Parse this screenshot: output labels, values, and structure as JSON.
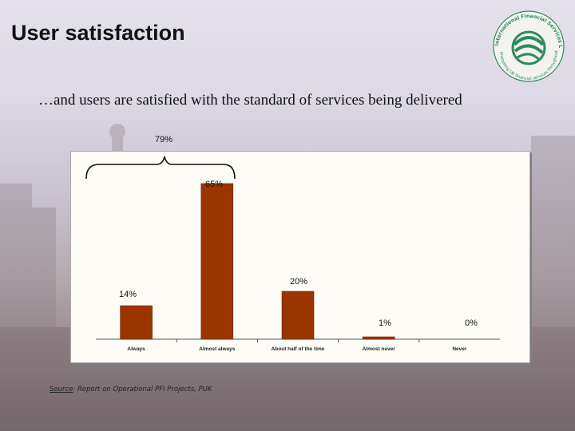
{
  "slide": {
    "title": "User satisfaction",
    "subtitle": "…and users are satisfied with the standard of services being delivered"
  },
  "logo": {
    "text_top": "International Financial Services London",
    "text_bottom": "Promoting UK financial services throughout the world",
    "icon": "globe-swirl-icon"
  },
  "bracket": {
    "label": "79%",
    "icon": "curly-brace-icon"
  },
  "source": {
    "label": "Source",
    "text": ": Report on Operational PFI Projects, PUK"
  },
  "colors": {
    "bar": "#9a3500",
    "bar_edge": "#6e2500",
    "panel": "#fdfcf6",
    "logo_green": "#2e8b57"
  },
  "chart_data": {
    "type": "bar",
    "title": "",
    "xlabel": "",
    "ylabel": "",
    "ylim": [
      0,
      70
    ],
    "grid": false,
    "categories": [
      "Always",
      "Almost always",
      "About half of the time",
      "Almost never",
      "Never"
    ],
    "values": [
      14,
      65,
      20,
      1,
      0
    ],
    "data_labels": [
      "14%",
      "65%",
      "20%",
      "1%",
      "0%"
    ]
  }
}
